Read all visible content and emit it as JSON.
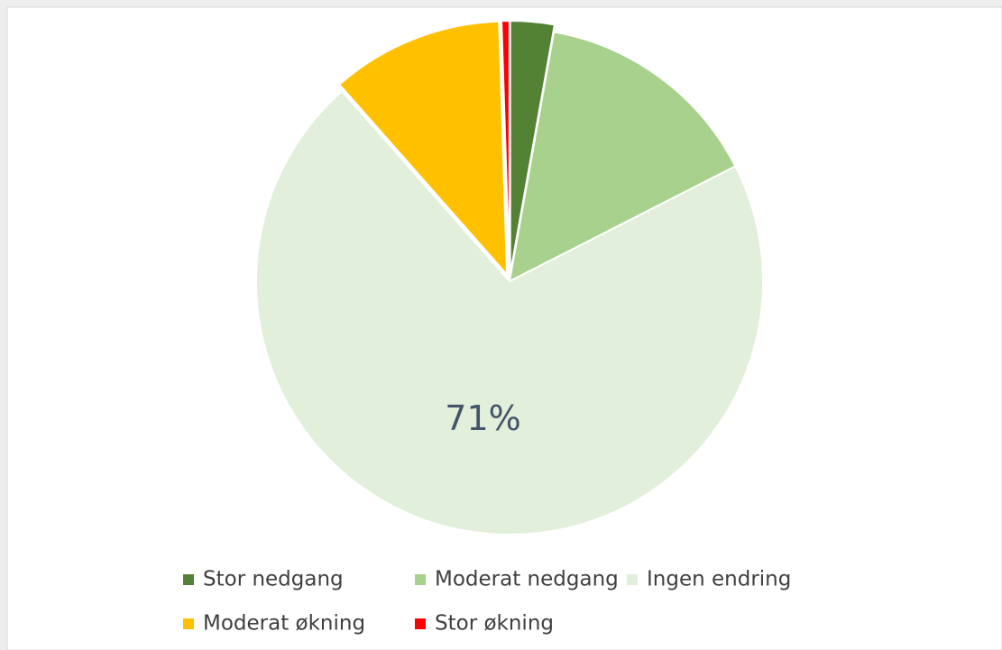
{
  "chart_data": {
    "type": "pie",
    "categories": [
      "Stor nedgang",
      "Moderat nedgang",
      "Ingen endring",
      "Moderat økning",
      "Stor økning"
    ],
    "values": [
      2.8,
      14.7,
      71,
      11,
      0.5
    ],
    "value_labels": [
      null,
      null,
      "71%",
      null,
      null
    ],
    "colors": [
      "#548235",
      "#a9d18e",
      "#e2efda",
      "#ffc000",
      "#ff0000"
    ],
    "legend": "bottom"
  }
}
